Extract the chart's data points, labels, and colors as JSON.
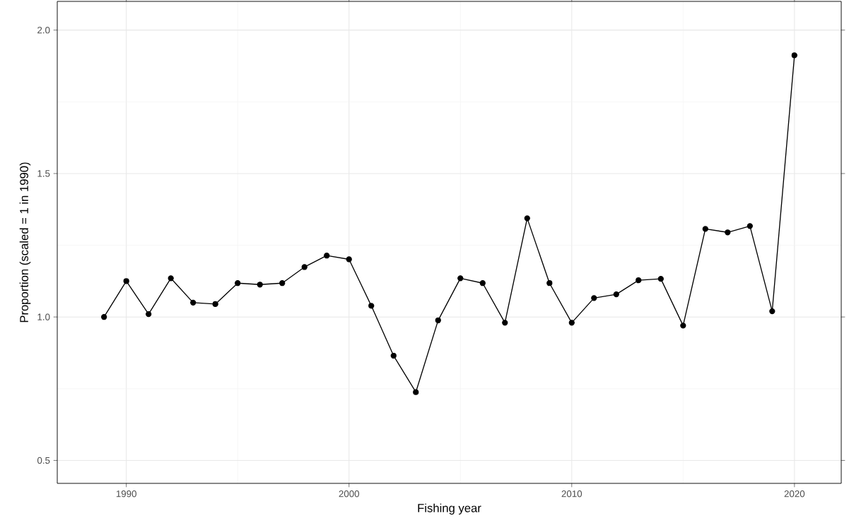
{
  "chart_data": {
    "type": "line",
    "xlabel": "Fishing year",
    "ylabel": "Proportion (scaled = 1 in 1990)",
    "x": [
      1989,
      1990,
      1991,
      1992,
      1993,
      1994,
      1995,
      1996,
      1997,
      1998,
      1999,
      2000,
      2001,
      2002,
      2003,
      2004,
      2005,
      2006,
      2007,
      2008,
      2009,
      2010,
      2011,
      2012,
      2013,
      2014,
      2015,
      2016,
      2017,
      2018,
      2019,
      2020
    ],
    "values": [
      1.0,
      1.125,
      1.01,
      1.135,
      1.05,
      1.045,
      1.118,
      1.113,
      1.118,
      1.174,
      1.214,
      1.201,
      1.039,
      0.865,
      0.738,
      0.988,
      1.135,
      1.118,
      0.98,
      1.344,
      1.118,
      0.98,
      1.066,
      1.079,
      1.128,
      1.133,
      0.97,
      1.307,
      1.295,
      1.317,
      1.02,
      1.912
    ],
    "color": "#000000",
    "marker": "circle",
    "line_style": "solid",
    "grid": true,
    "xlim": [
      1986.9,
      2022.1
    ],
    "ylim": [
      0.42,
      2.1
    ],
    "xticks": [
      1990,
      2000,
      2010,
      2020
    ],
    "yticks": [
      0.5,
      {
        "value": 1,
        "label": "1.0"
      },
      1.5,
      {
        "value": 2,
        "label": "2.0"
      }
    ]
  }
}
